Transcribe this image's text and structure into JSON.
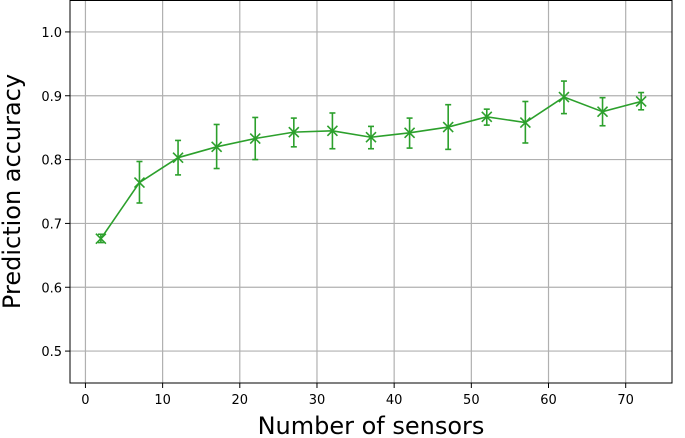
{
  "chart_data": {
    "type": "line",
    "title": "",
    "xlabel": "Number of sensors",
    "ylabel": "Prediction accuracy",
    "xlim": [
      -2,
      76
    ],
    "ylim": [
      0.45,
      1.05
    ],
    "xticks": [
      0,
      10,
      20,
      30,
      40,
      50,
      60,
      70
    ],
    "yticks": [
      0.5,
      0.6,
      0.7,
      0.8,
      0.9,
      1.0
    ],
    "xtick_labels": [
      "0",
      "10",
      "20",
      "30",
      "40",
      "50",
      "60",
      "70"
    ],
    "ytick_labels": [
      "0.5",
      "0.6",
      "0.7",
      "0.8",
      "0.9",
      "1.0"
    ],
    "grid": true,
    "color": "#2ca02c",
    "marker": "x",
    "series": [
      {
        "x": [
          2,
          7,
          12,
          17,
          22,
          27,
          32,
          37,
          42,
          47,
          52,
          57,
          62,
          67,
          72
        ],
        "y": [
          0.676,
          0.764,
          0.803,
          0.82,
          0.833,
          0.843,
          0.845,
          0.835,
          0.842,
          0.851,
          0.867,
          0.858,
          0.898,
          0.875,
          0.891
        ],
        "err_low": [
          0.67,
          0.732,
          0.776,
          0.786,
          0.8,
          0.82,
          0.817,
          0.817,
          0.818,
          0.816,
          0.854,
          0.826,
          0.872,
          0.853,
          0.878
        ],
        "err_high": [
          0.683,
          0.797,
          0.83,
          0.855,
          0.866,
          0.865,
          0.873,
          0.852,
          0.865,
          0.886,
          0.879,
          0.891,
          0.923,
          0.897,
          0.905
        ]
      }
    ]
  }
}
